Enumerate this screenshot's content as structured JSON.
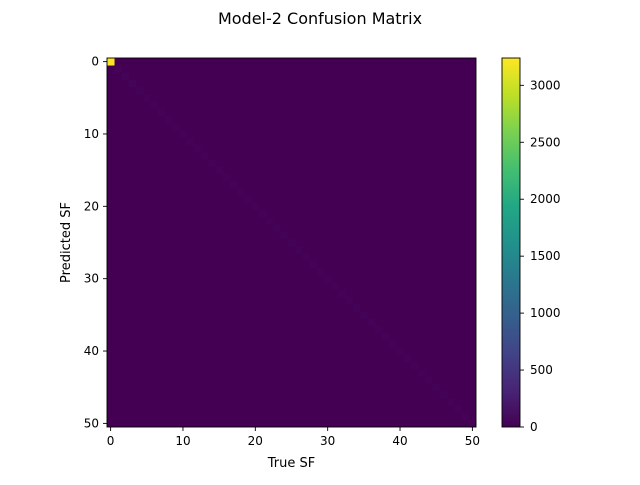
{
  "chart_data": {
    "type": "heatmap",
    "title": "Model-2 Confusion Matrix",
    "xlabel": "True SF",
    "ylabel": "Predicted SF",
    "n_classes": 51,
    "x_ticks": [
      0,
      10,
      20,
      30,
      40,
      50
    ],
    "y_ticks": [
      0,
      10,
      20,
      30,
      40,
      50
    ],
    "colorbar_ticks": [
      0,
      500,
      1000,
      1500,
      2000,
      2500,
      3000
    ],
    "value_range": [
      0,
      3240
    ],
    "colormap": "viridis",
    "grid": false,
    "cells_note_values": "diagonal counts per class (index = class); all off-diagonal cells ~0",
    "diagonal": [
      3240,
      30,
      25,
      25,
      22,
      22,
      20,
      20,
      20,
      20,
      20,
      20,
      18,
      18,
      18,
      18,
      18,
      18,
      18,
      18,
      18,
      18,
      18,
      18,
      18,
      18,
      18,
      18,
      18,
      18,
      18,
      18,
      18,
      18,
      18,
      18,
      18,
      18,
      18,
      18,
      18,
      18,
      18,
      18,
      18,
      18,
      18,
      18,
      18,
      18,
      18
    ]
  }
}
